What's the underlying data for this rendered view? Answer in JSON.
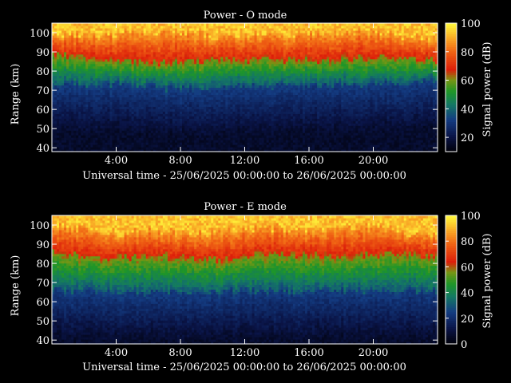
{
  "chart_data": [
    {
      "type": "heatmap",
      "title": "Power - O mode",
      "xlabel": "Universal time - 25/06/2025 00:00:00 to 26/06/2025 00:00:00",
      "ylabel": "Range (km)",
      "colorbar_label": "Signal power (dB)",
      "x_range_hours": [
        0,
        24
      ],
      "x_ticks": [
        "4:00",
        "8:00",
        "12:00",
        "16:00",
        "20:00"
      ],
      "x_tick_hours": [
        4,
        8,
        12,
        16,
        20
      ],
      "y_range_km": [
        38,
        105
      ],
      "y_ticks": [
        40,
        50,
        60,
        70,
        80,
        90,
        100
      ],
      "colorbar_range": [
        10,
        100
      ],
      "colorbar_ticks": [
        20,
        40,
        60,
        80,
        100
      ],
      "profile": {
        "hours": [
          0,
          2,
          4,
          6,
          8,
          10,
          12,
          14,
          16,
          18,
          20,
          22,
          24
        ],
        "upper_edge_km": [
          74,
          73,
          73,
          72,
          71,
          72,
          72,
          72,
          73,
          73,
          73,
          74,
          75
        ],
        "red_edge_km": [
          89,
          87,
          86,
          85,
          85,
          86,
          86,
          86,
          86,
          87,
          87,
          87,
          86
        ],
        "yellow_edge_km": [
          100,
          99,
          99,
          101,
          100,
          98,
          100,
          99,
          99,
          100,
          101,
          98,
          96
        ]
      }
    },
    {
      "type": "heatmap",
      "title": "Power - E mode",
      "xlabel": "Universal time - 25/06/2025 00:00:00 to 26/06/2025 00:00:00",
      "ylabel": "Range (km)",
      "colorbar_label": "Signal power (dB)",
      "x_range_hours": [
        0,
        24
      ],
      "x_ticks": [
        "4:00",
        "8:00",
        "12:00",
        "16:00",
        "20:00"
      ],
      "x_tick_hours": [
        4,
        8,
        12,
        16,
        20
      ],
      "y_range_km": [
        38,
        105
      ],
      "y_ticks": [
        40,
        50,
        60,
        70,
        80,
        90,
        100
      ],
      "colorbar_range": [
        0,
        100
      ],
      "colorbar_ticks": [
        0,
        20,
        40,
        60,
        80,
        100
      ],
      "profile": {
        "hours": [
          0,
          2,
          4,
          6,
          8,
          10,
          12,
          14,
          16,
          18,
          20,
          22,
          24
        ],
        "upper_edge_km": [
          66,
          66,
          65,
          65,
          64,
          65,
          66,
          66,
          66,
          66,
          66,
          66,
          66
        ],
        "red_edge_km": [
          86,
          84,
          83,
          84,
          84,
          82,
          84,
          85,
          84,
          84,
          85,
          85,
          84
        ],
        "yellow_edge_km": [
          100,
          98,
          96,
          98,
          96,
          96,
          98,
          99,
          97,
          98,
          99,
          97,
          94
        ]
      }
    }
  ]
}
